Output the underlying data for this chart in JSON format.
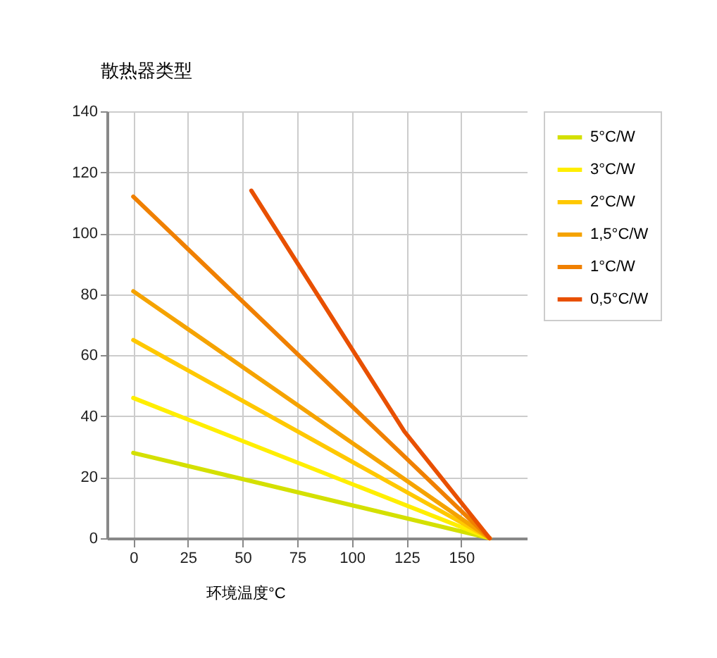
{
  "chart_data": {
    "type": "line",
    "ylabel": "散热器类型",
    "xlabel": "环境温度°C",
    "xlim": [
      -12,
      180
    ],
    "xticks": [
      0,
      25,
      50,
      75,
      100,
      125,
      150
    ],
    "ylim": [
      0,
      140
    ],
    "yticks": [
      0,
      20,
      40,
      60,
      80,
      100,
      120,
      140
    ],
    "grid": true,
    "legend": "right",
    "line_style": "solid",
    "marker": "none",
    "series": [
      {
        "name": "5°C/W",
        "color": "#d4e000",
        "x": [
          0,
          163
        ],
        "values": [
          28,
          0
        ]
      },
      {
        "name": "3°C/W",
        "color": "#ffee00",
        "x": [
          0,
          163
        ],
        "values": [
          46,
          0
        ]
      },
      {
        "name": "2°C/W",
        "color": "#ffc800",
        "x": [
          0,
          163
        ],
        "values": [
          65,
          0
        ]
      },
      {
        "name": "1,5°C/W",
        "color": "#f5a300",
        "x": [
          0,
          163
        ],
        "values": [
          81,
          0
        ]
      },
      {
        "name": "1°C/W",
        "color": "#f08000",
        "x": [
          0,
          163
        ],
        "values": [
          112,
          0
        ]
      },
      {
        "name": "0,5°C/W",
        "color": "#e85000",
        "x": [
          54,
          124,
          163
        ],
        "values": [
          114,
          35,
          0
        ]
      }
    ]
  }
}
